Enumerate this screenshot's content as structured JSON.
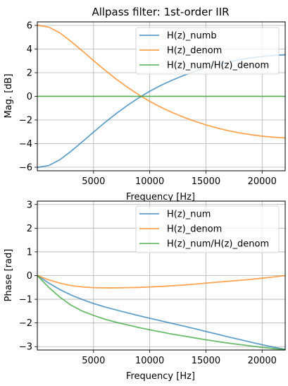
{
  "chart_data": [
    {
      "type": "line",
      "title": "Allpass filter: 1st-order IIR",
      "xlabel": "Frequency [Hz]",
      "ylabel": "Mag. [dB]",
      "xlim": [
        0,
        22050
      ],
      "ylim": [
        -6.3,
        6.3
      ],
      "xticks": [
        5000,
        10000,
        15000,
        20000
      ],
      "xtick_labels": [
        "5000",
        "10000",
        "15000",
        "20000"
      ],
      "yticks": [
        -6,
        -4,
        -2,
        0,
        2,
        4,
        6
      ],
      "ytick_labels": [
        "−6",
        "−4",
        "−2",
        "0",
        "2",
        "4",
        "6"
      ],
      "grid": true,
      "legend_position": "top-right",
      "x": [
        0,
        1000,
        2000,
        3000,
        4000,
        5000,
        6000,
        7000,
        8000,
        9000,
        10000,
        11000,
        12000,
        13000,
        14000,
        15000,
        16000,
        17000,
        18000,
        19000,
        20000,
        21000,
        22050
      ],
      "series": [
        {
          "name": "H(z)_numb",
          "color": "#1f77b4",
          "values": [
            -6.02,
            -5.86,
            -5.37,
            -4.65,
            -3.85,
            -3.03,
            -2.23,
            -1.47,
            -0.78,
            -0.14,
            0.43,
            0.93,
            1.37,
            1.76,
            2.11,
            2.42,
            2.68,
            2.91,
            3.1,
            3.25,
            3.37,
            3.46,
            3.52
          ]
        },
        {
          "name": "H(z)_denom",
          "color": "#ff7f0e",
          "values": [
            6.02,
            5.86,
            5.37,
            4.65,
            3.85,
            3.03,
            2.23,
            1.47,
            0.78,
            0.14,
            -0.43,
            -0.93,
            -1.37,
            -1.76,
            -2.11,
            -2.42,
            -2.68,
            -2.91,
            -3.1,
            -3.25,
            -3.37,
            -3.46,
            -3.52
          ]
        },
        {
          "name": "H(z)_num/H(z)_denom",
          "color": "#2ca02c",
          "values": [
            0,
            0,
            0,
            0,
            0,
            0,
            0,
            0,
            0,
            0,
            0,
            0,
            0,
            0,
            0,
            0,
            0,
            0,
            0,
            0,
            0,
            0,
            0
          ]
        }
      ]
    },
    {
      "type": "line",
      "title": "",
      "xlabel": "Frequency [Hz]",
      "ylabel": "Phase [rad]",
      "xlim": [
        0,
        22050
      ],
      "ylim": [
        -3.1416,
        3.1416
      ],
      "xticks": [
        5000,
        10000,
        15000,
        20000
      ],
      "xtick_labels": [
        "5000",
        "10000",
        "15000",
        "20000"
      ],
      "yticks": [
        -3,
        -2,
        -1,
        0,
        1,
        2,
        3
      ],
      "ytick_labels": [
        "−3",
        "−2",
        "−1",
        "0",
        "1",
        "2",
        "3"
      ],
      "grid": true,
      "legend_position": "top-right",
      "x": [
        0,
        1000,
        2000,
        3000,
        4000,
        5000,
        6000,
        7000,
        8000,
        9000,
        10000,
        11000,
        12000,
        13000,
        14000,
        15000,
        16000,
        17000,
        18000,
        19000,
        20000,
        21000,
        22050
      ],
      "series": [
        {
          "name": "H(z)_num",
          "color": "#1f77b4",
          "values": [
            0,
            -0.31,
            -0.59,
            -0.82,
            -1.01,
            -1.18,
            -1.32,
            -1.45,
            -1.57,
            -1.69,
            -1.8,
            -1.91,
            -2.02,
            -2.13,
            -2.24,
            -2.36,
            -2.47,
            -2.59,
            -2.7,
            -2.81,
            -2.92,
            -3.02,
            -3.12
          ]
        },
        {
          "name": "H(z)_denom",
          "color": "#ff7f0e",
          "values": [
            0,
            -0.18,
            -0.32,
            -0.42,
            -0.48,
            -0.51,
            -0.52,
            -0.52,
            -0.51,
            -0.5,
            -0.48,
            -0.46,
            -0.43,
            -0.4,
            -0.36,
            -0.32,
            -0.28,
            -0.24,
            -0.2,
            -0.16,
            -0.11,
            -0.06,
            0
          ]
        },
        {
          "name": "H(z)_num/H(z)_denom",
          "color": "#2ca02c",
          "values": [
            0,
            -0.49,
            -0.91,
            -1.25,
            -1.5,
            -1.68,
            -1.84,
            -1.97,
            -2.08,
            -2.19,
            -2.29,
            -2.38,
            -2.47,
            -2.55,
            -2.63,
            -2.71,
            -2.78,
            -2.85,
            -2.91,
            -2.97,
            -3.03,
            -3.08,
            -3.12
          ]
        }
      ]
    }
  ]
}
